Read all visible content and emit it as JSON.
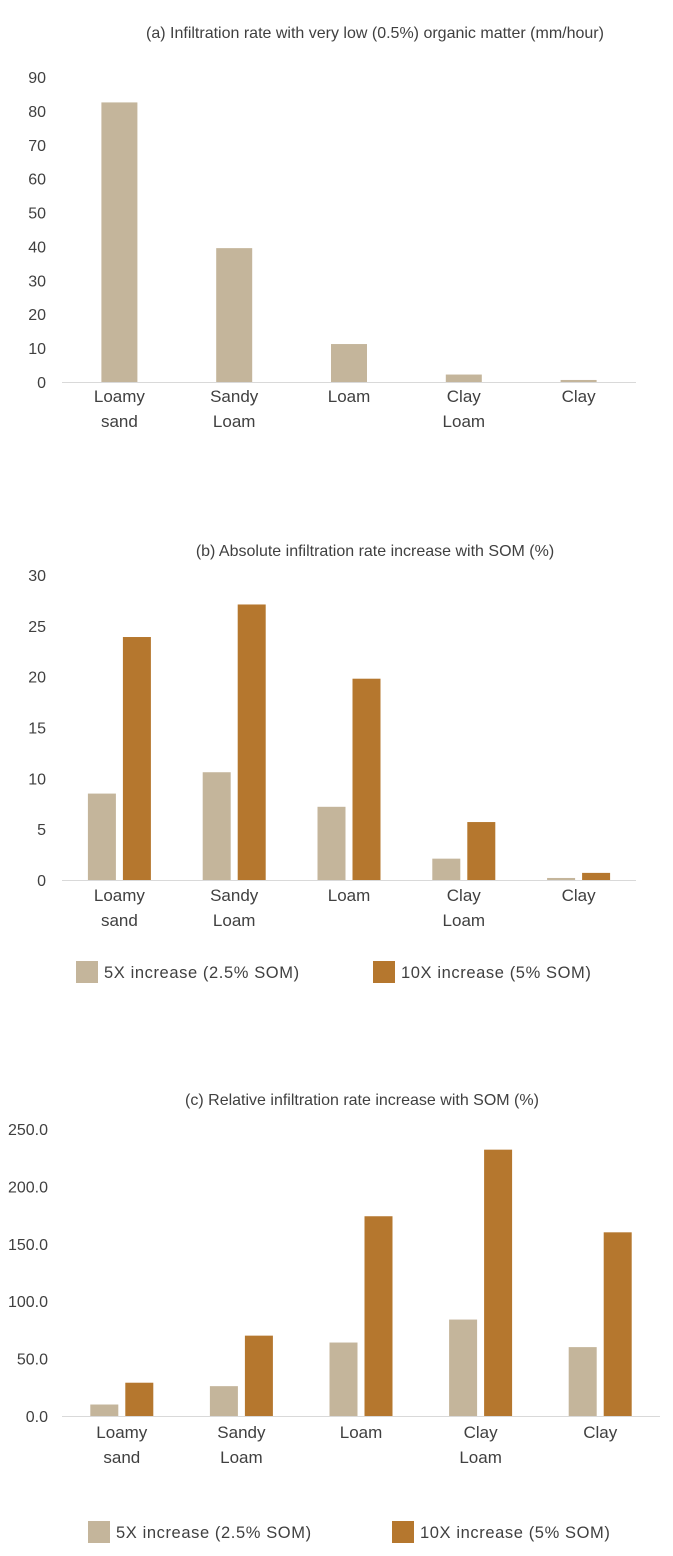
{
  "colors": {
    "series1": "#c4b59b",
    "series2": "#b5772e"
  },
  "chart_data": [
    {
      "type": "bar",
      "title": "(a)  Infiltration rate with very low (0.5%) organic matter (mm/hour)",
      "categories": [
        [
          "Loamy",
          "sand"
        ],
        [
          "Sandy",
          "Loam"
        ],
        [
          "Loam"
        ],
        [
          "Clay",
          "Loam"
        ],
        [
          "Clay"
        ]
      ],
      "series": [
        {
          "values": [
            82.5,
            39.5,
            11.2,
            2.2,
            0.6
          ]
        }
      ],
      "yticks": [
        "0",
        "10",
        "20",
        "30",
        "40",
        "50",
        "60",
        "70",
        "80",
        "90"
      ],
      "ylim": [
        0,
        90
      ],
      "grid": false,
      "legend": null
    },
    {
      "type": "bar",
      "title": "(b)  Absolute infiltration rate increase with SOM (%)",
      "categories": [
        [
          "Loamy",
          "sand"
        ],
        [
          "Sandy",
          "Loam"
        ],
        [
          "Loam"
        ],
        [
          "Clay",
          "Loam"
        ],
        [
          "Clay"
        ]
      ],
      "series": [
        {
          "name": "5X increase (2.5% SOM)",
          "values": [
            8.5,
            10.6,
            7.2,
            2.1,
            0.2
          ]
        },
        {
          "name": "10X increase (5% SOM)",
          "values": [
            23.9,
            27.1,
            19.8,
            5.7,
            0.7
          ]
        }
      ],
      "yticks": [
        "0",
        "5",
        "10",
        "15",
        "20",
        "25",
        "30"
      ],
      "ylim": [
        0,
        30
      ],
      "grid": false,
      "legend": "bottom"
    },
    {
      "type": "bar",
      "title": "(c)  Relative infiltration rate increase with SOM (%)",
      "categories": [
        [
          "Loamy",
          "sand"
        ],
        [
          "Sandy",
          "Loam"
        ],
        [
          "Loam"
        ],
        [
          "Clay",
          "Loam"
        ],
        [
          "Clay"
        ]
      ],
      "series": [
        {
          "name": "5X increase (2.5% SOM)",
          "values": [
            10.0,
            26.0,
            64.0,
            84.0,
            60.0
          ]
        },
        {
          "name": "10X increase (5% SOM)",
          "values": [
            29.0,
            70.0,
            174.0,
            232.0,
            160.0
          ]
        }
      ],
      "yticks": [
        "0.0",
        "50.0",
        "100.0",
        "150.0",
        "200.0",
        "250.0"
      ],
      "ylim": [
        0,
        250
      ],
      "grid": false,
      "legend": "bottom"
    }
  ]
}
